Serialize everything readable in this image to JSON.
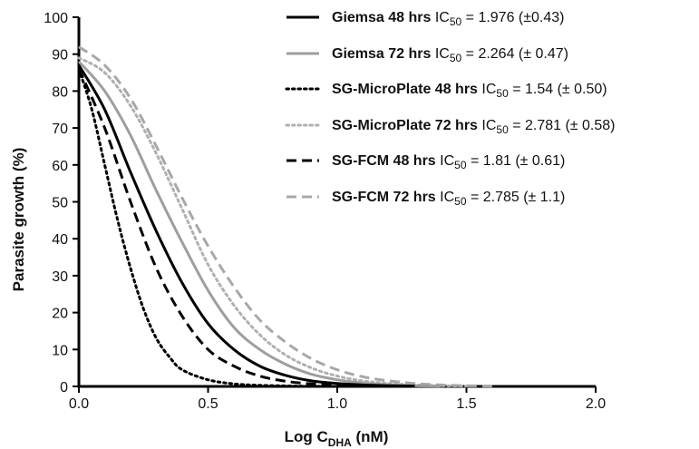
{
  "chart_data": {
    "type": "line",
    "title": "",
    "xlabel": {
      "main": "Log C",
      "sub": "DHA",
      "unit": " (nM)"
    },
    "ylabel": "Parasite growth (%)",
    "xlim": [
      0,
      2
    ],
    "ylim": [
      0,
      100
    ],
    "x_ticks": [
      "0.0",
      "0.5",
      "1.0",
      "1.5",
      "2.0"
    ],
    "y_ticks": [
      "0",
      "10",
      "20",
      "30",
      "40",
      "50",
      "60",
      "70",
      "80",
      "90",
      "100"
    ],
    "grid": false,
    "legend_position": "top-right",
    "series": [
      {
        "name": "Giemsa 48 hrs",
        "ic50_prefix": "IC",
        "ic50_sub": "50",
        "ic50_value": " = 1.976 (±0.43)",
        "color": "#000000",
        "style": "solid",
        "x": [
          0,
          0.1,
          0.2,
          0.3,
          0.4,
          0.5,
          0.6,
          0.7,
          0.8,
          0.9,
          1.0,
          1.1,
          1.2,
          1.3
        ],
        "y": [
          87,
          75,
          58,
          42,
          28,
          17,
          10,
          5.5,
          3,
          1.5,
          0.8,
          0.4,
          0.2,
          0.1
        ]
      },
      {
        "name": "Giemsa 72 hrs",
        "ic50_prefix": "IC",
        "ic50_sub": "50",
        "ic50_value": " = 2.264 (± 0.47)",
        "color": "#9e9e9e",
        "style": "solid",
        "x": [
          0,
          0.1,
          0.2,
          0.3,
          0.4,
          0.5,
          0.6,
          0.7,
          0.8,
          0.9,
          1.0,
          1.1,
          1.2,
          1.3,
          1.4
        ],
        "y": [
          88,
          80,
          68,
          53,
          39,
          26,
          16,
          10,
          6,
          3.3,
          1.8,
          0.9,
          0.4,
          0.2,
          0.1
        ]
      },
      {
        "name": "SG-MicroPlate 48 hrs",
        "ic50_prefix": "IC",
        "ic50_sub": "50",
        "ic50_value": " = 1.54 (± 0.50)",
        "color": "#000000",
        "style": "dotted",
        "x": [
          0,
          0.05,
          0.1,
          0.15,
          0.2,
          0.25,
          0.3,
          0.35,
          0.4,
          0.5,
          0.6,
          0.7,
          0.8,
          0.9,
          1.0
        ],
        "y": [
          86,
          75,
          60,
          45,
          32,
          21,
          13,
          8,
          4.5,
          1.8,
          0.7,
          0.3,
          0.15,
          0.05,
          0
        ]
      },
      {
        "name": "SG-MicroPlate 72 hrs",
        "ic50_prefix": "IC",
        "ic50_sub": "50",
        "ic50_value": " = 2.781 (± 0.58)",
        "color": "#b0b0b0",
        "style": "dotted",
        "x": [
          0,
          0.1,
          0.2,
          0.3,
          0.4,
          0.5,
          0.6,
          0.7,
          0.8,
          0.9,
          1.0,
          1.1,
          1.2,
          1.3,
          1.4,
          1.5
        ],
        "y": [
          89,
          85,
          76,
          63,
          48,
          33,
          22,
          14,
          8.5,
          5,
          2.8,
          1.5,
          0.8,
          0.4,
          0.2,
          0.1
        ]
      },
      {
        "name": "SG-FCM 48 hrs",
        "ic50_prefix": "IC",
        "ic50_sub": "50",
        "ic50_value": " = 1.81 (± 0.61)",
        "color": "#000000",
        "style": "dashed",
        "x": [
          0,
          0.1,
          0.2,
          0.3,
          0.4,
          0.5,
          0.6,
          0.7,
          0.8,
          0.9,
          1.0,
          1.1,
          1.2
        ],
        "y": [
          86,
          70,
          50,
          32,
          19,
          10,
          5.5,
          2.8,
          1.4,
          0.7,
          0.3,
          0.15,
          0.05
        ]
      },
      {
        "name": "SG-FCM 72 hrs",
        "ic50_prefix": "IC",
        "ic50_sub": "50",
        "ic50_value": " = 2.785 (± 1.1)",
        "color": "#a8a8a8",
        "style": "dashed",
        "x": [
          0,
          0.1,
          0.2,
          0.3,
          0.4,
          0.5,
          0.6,
          0.7,
          0.8,
          0.9,
          1.0,
          1.1,
          1.2,
          1.3,
          1.4,
          1.5,
          1.6
        ],
        "y": [
          92,
          87,
          78,
          65,
          51,
          38,
          27,
          18,
          12,
          7.5,
          4.5,
          2.6,
          1.5,
          0.8,
          0.4,
          0.2,
          0.1
        ]
      }
    ]
  }
}
